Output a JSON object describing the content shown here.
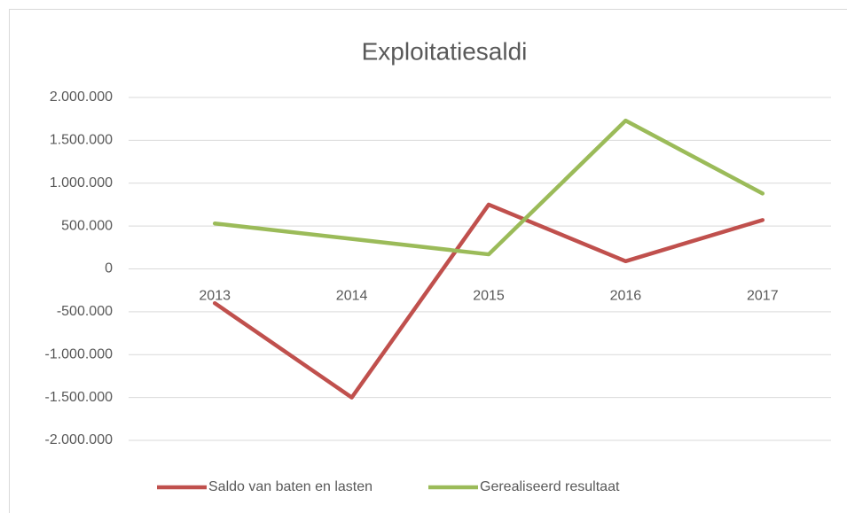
{
  "chart_data": {
    "type": "line",
    "title": "Exploitatiesaldi",
    "categories": [
      "2013",
      "2014",
      "2015",
      "2016",
      "2017"
    ],
    "series": [
      {
        "name": "Saldo van baten en lasten",
        "color": "#c0504d",
        "values": [
          -400000,
          -1500000,
          750000,
          90000,
          570000
        ]
      },
      {
        "name": "Gerealiseerd resultaat",
        "color": "#9bbb59",
        "values": [
          530000,
          350000,
          170000,
          1730000,
          880000
        ]
      }
    ],
    "ylim": [
      -2000000,
      2000000
    ],
    "yticks": [
      {
        "value": -2000000,
        "label": "-2.000.000"
      },
      {
        "value": -1500000,
        "label": "-1.500.000"
      },
      {
        "value": -1000000,
        "label": "-1.000.000"
      },
      {
        "value": -500000,
        "label": "-500.000"
      },
      0,
      {
        "value": 500000,
        "label": "500.000"
      },
      {
        "value": 1000000,
        "label": "1.000.000"
      },
      {
        "value": 1500000,
        "label": "1.500.000"
      },
      {
        "value": 2000000,
        "label": "2.000.000"
      }
    ],
    "grid": true,
    "legend": "bottom"
  }
}
